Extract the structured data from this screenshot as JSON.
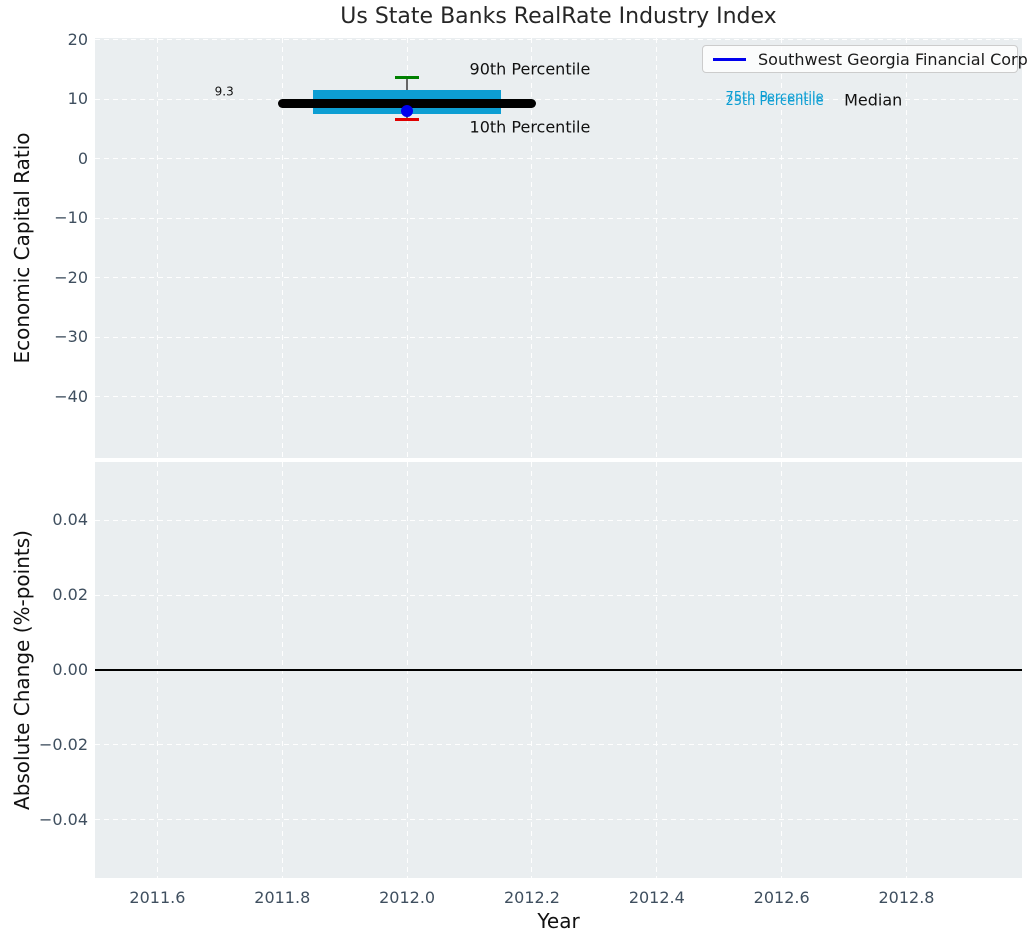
{
  "figure": {
    "title": "Us State Banks RealRate Industry Index",
    "background": "#ffffff",
    "panel_background": "#eaeef0",
    "grid_color": "#ffffff",
    "grid_style": "dashed",
    "tick_color": "#3f4f5f"
  },
  "chart_data": [
    {
      "type": "scatter",
      "title": "Us State Banks RealRate Industry Index",
      "ylabel": "Economic Capital Ratio",
      "xlim": [
        2011.5,
        2012.985
      ],
      "ylim": [
        -50.3,
        20.3
      ],
      "xticks": {
        "values": [
          2011.6,
          2011.8,
          2012.0,
          2012.2,
          2012.4,
          2012.6,
          2012.8
        ],
        "labels": [
          "2011.6",
          "2011.8",
          "2012.0",
          "2012.2",
          "2012.4",
          "2012.6",
          "2012.8"
        ]
      },
      "xtick_labels_visible": false,
      "yticks": {
        "values": [
          20,
          10,
          0,
          -10,
          -20,
          -30,
          -40
        ],
        "labels": [
          "20",
          "10",
          "0",
          "−10",
          "−20",
          "−30",
          "−40"
        ]
      },
      "legend": {
        "position": "upper right",
        "entries": [
          {
            "label": "Southwest Georgia Financial Corp",
            "color": "#0000ee",
            "marker": "line"
          }
        ]
      },
      "percentiles": {
        "p90": {
          "x": 2012.0,
          "value": 13.7,
          "cap_color": "#008000"
        },
        "p10": {
          "x": 2012.0,
          "value": 6.6,
          "cap_color": "#e00000"
        },
        "iqr_band": {
          "x_start": 2011.85,
          "x_end": 2012.15,
          "p75": 11.5,
          "p25": 7.5,
          "color": "#0d9ed3"
        },
        "median": {
          "value": 9.3,
          "x_start": 2011.8,
          "x_end": 2012.2,
          "color": "#000000"
        },
        "stem_color": "#666666"
      },
      "points": [
        {
          "series": "Southwest Georgia Financial Corp",
          "x": 2012.0,
          "y": 8.0,
          "color": "#0000ee"
        }
      ],
      "annotations": [
        {
          "id": "p90-label",
          "text": "90th Percentile",
          "x": 2012.1,
          "y": 14.9,
          "color": "#111111",
          "size": 16,
          "ha": "left"
        },
        {
          "id": "p10-label",
          "text": "10th Percentile",
          "x": 2012.1,
          "y": 5.1,
          "color": "#111111",
          "size": 16,
          "ha": "left"
        },
        {
          "id": "median-value-label",
          "text": "9.3",
          "x": 2011.707,
          "y": 11.0,
          "color": "#111111",
          "size": 12,
          "ha": "center"
        },
        {
          "id": "p75-label",
          "text": "75th Percentile",
          "x": 2012.51,
          "y": 10.1,
          "color": "#0d9ed3",
          "size": 13,
          "ha": "left"
        },
        {
          "id": "p25-label",
          "text": "25th Percentile",
          "x": 2012.51,
          "y": 9.4,
          "color": "#0d9ed3",
          "size": 13,
          "ha": "left"
        },
        {
          "id": "median-label",
          "text": "Median",
          "x": 2012.7,
          "y": 9.7,
          "color": "#111111",
          "size": 16,
          "ha": "left"
        }
      ]
    },
    {
      "type": "line",
      "ylabel": "Absolute Change (%-points)",
      "xlabel": "Year",
      "xlim": [
        2011.5,
        2012.985
      ],
      "ylim": [
        -0.0555,
        0.0555
      ],
      "xticks": {
        "values": [
          2011.6,
          2011.8,
          2012.0,
          2012.2,
          2012.4,
          2012.6,
          2012.8
        ],
        "labels": [
          "2011.6",
          "2011.8",
          "2012.0",
          "2012.2",
          "2012.4",
          "2012.6",
          "2012.8"
        ]
      },
      "xtick_labels_visible": true,
      "yticks": {
        "values": [
          0.04,
          0.02,
          0.0,
          -0.02,
          -0.04
        ],
        "labels": [
          "0.04",
          "0.02",
          "0.00",
          "−0.02",
          "−0.04"
        ]
      },
      "zero_line": {
        "y": 0.0,
        "color": "#000000"
      },
      "series": []
    }
  ]
}
